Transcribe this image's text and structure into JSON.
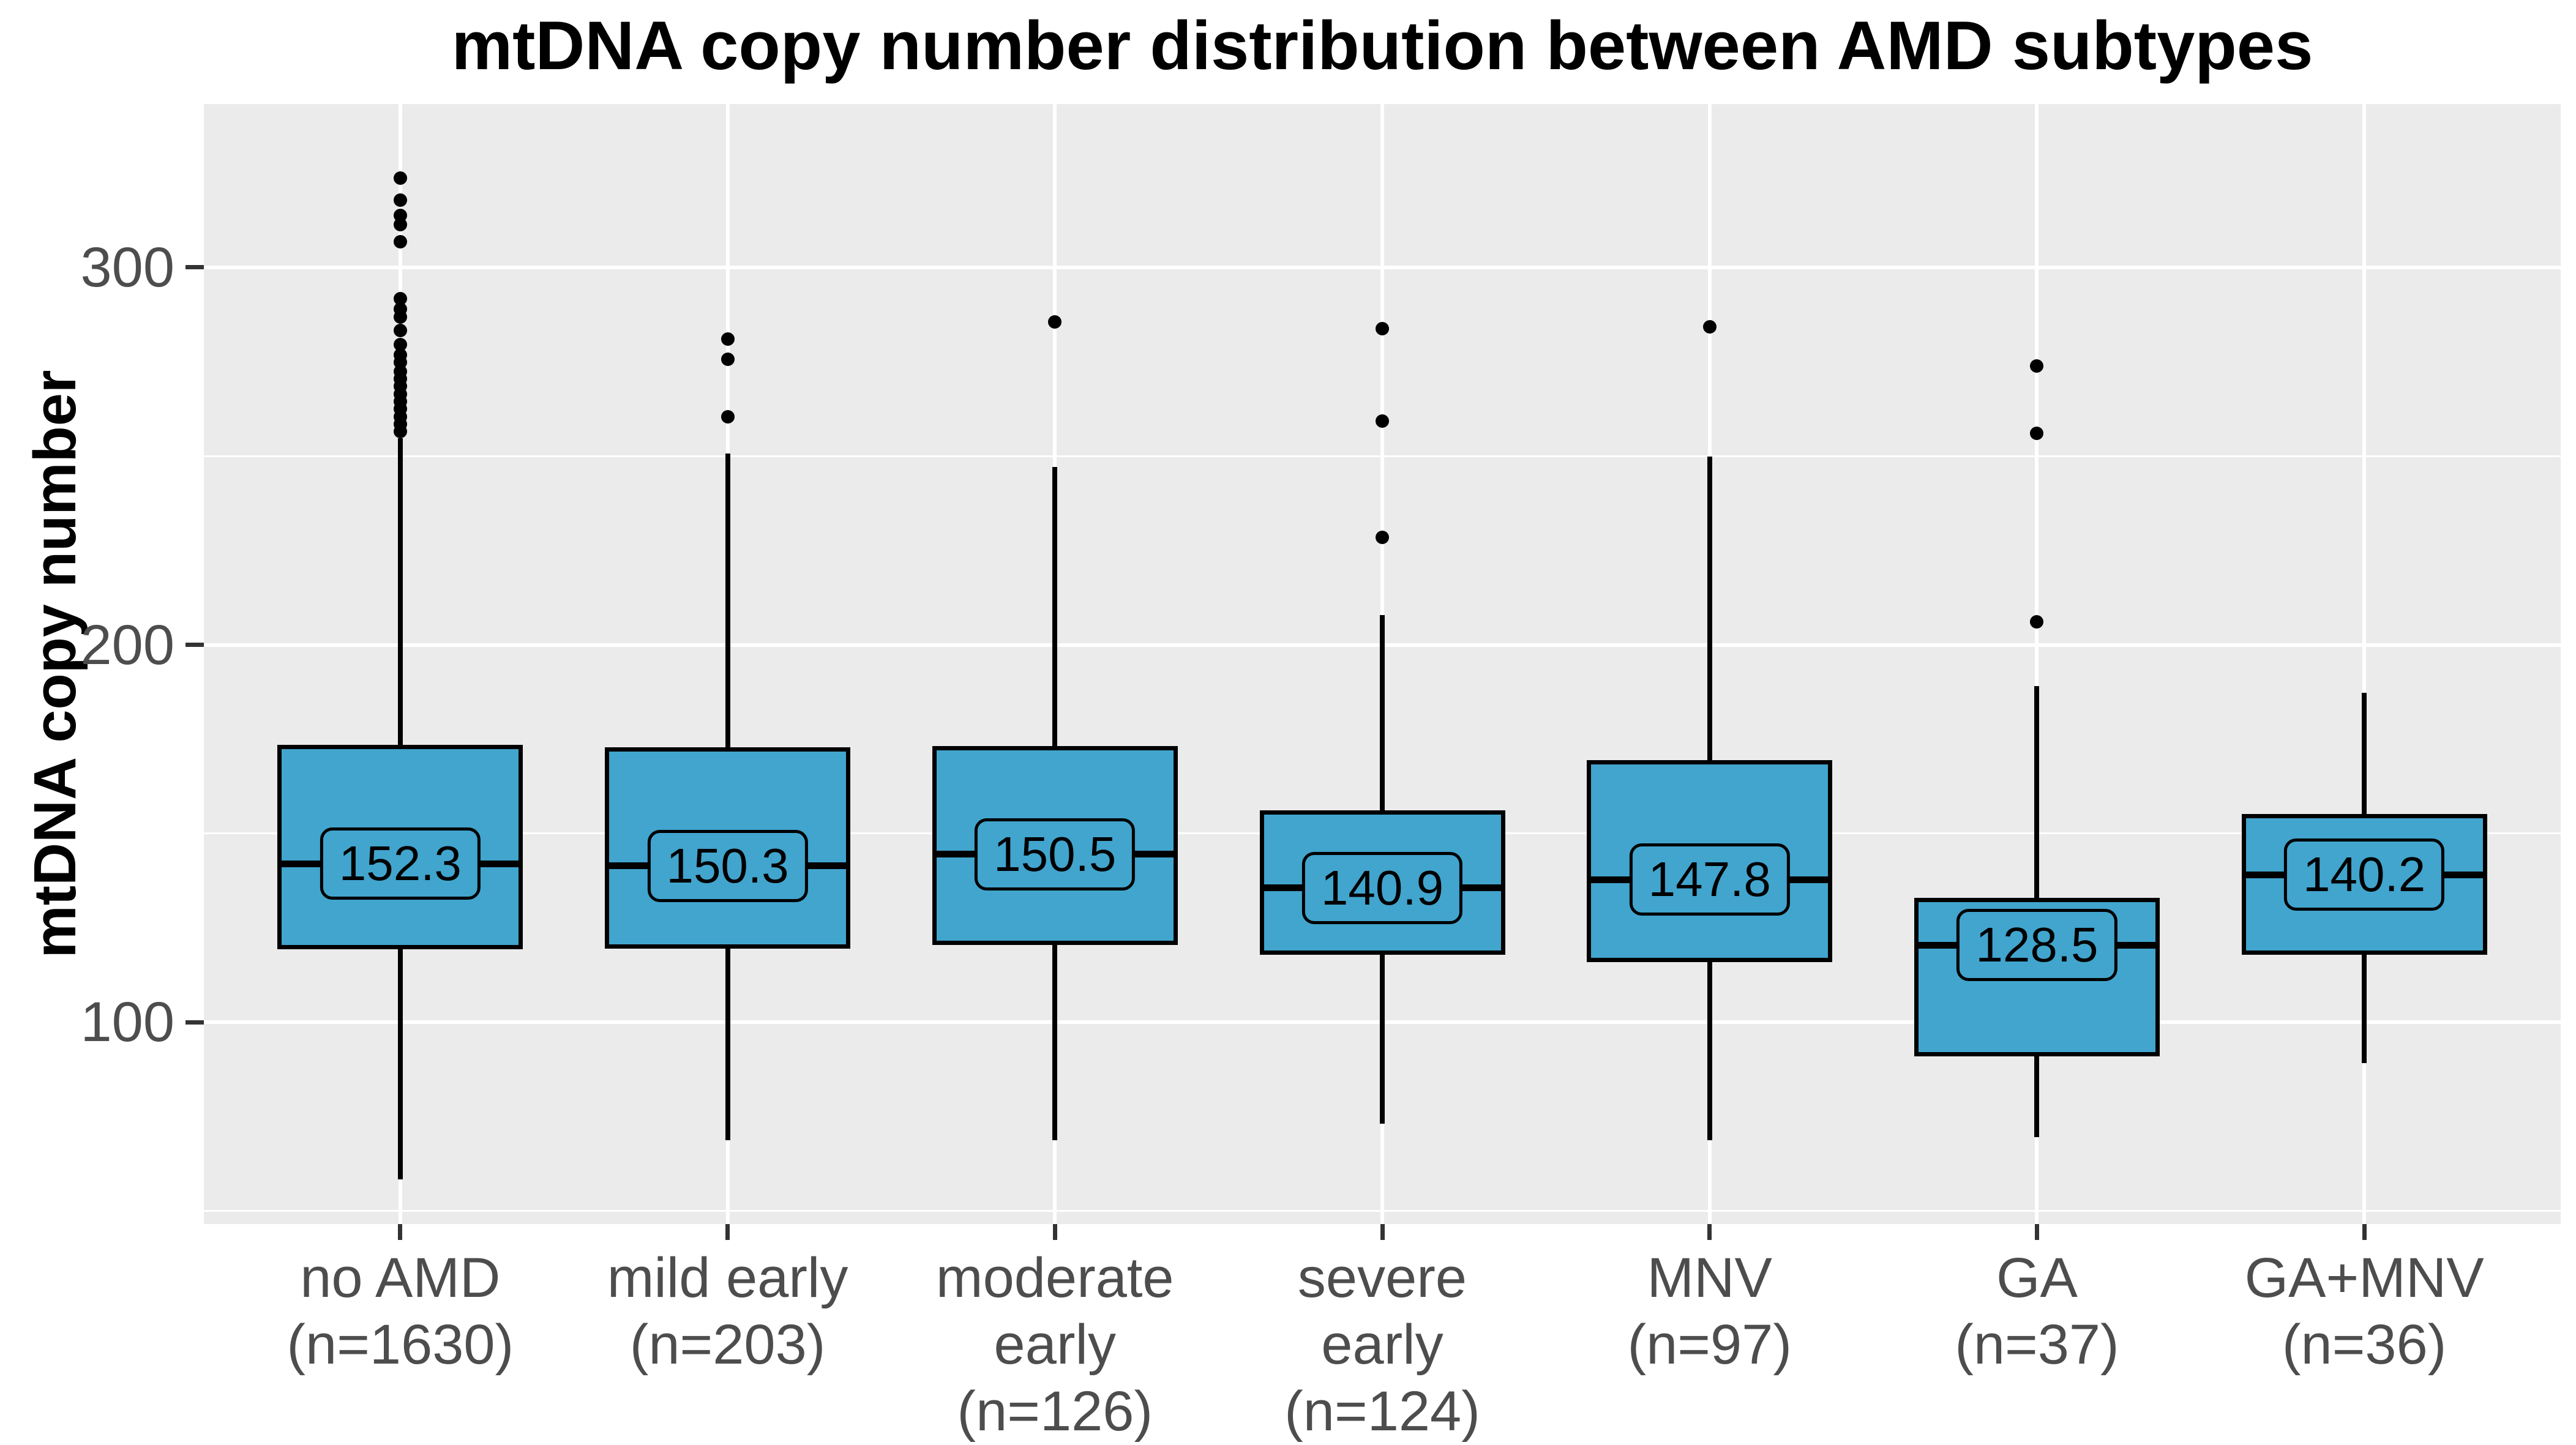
{
  "chart_data": {
    "type": "boxplot",
    "title": "mtDNA copy number distribution between AMD subtypes",
    "ylabel": "mtDNA copy number",
    "xlabel": "",
    "ylim": [
      46.5,
      343.3
    ],
    "grid": true,
    "legend_position": "none",
    "y_axis": {
      "ticks": [
        {
          "label": "300",
          "value": 300
        },
        {
          "label": "200",
          "value": 200
        },
        {
          "label": "100",
          "value": 100
        }
      ],
      "minor_gridlines": [
        50,
        150,
        250
      ]
    },
    "groups": [
      {
        "name": "no AMD",
        "n": 1630,
        "label_lines": [
          "no AMD",
          "(n=1630)"
        ],
        "mean_label": "152.3",
        "whisker_low": 58.3,
        "q1": 119.3,
        "median": 142.0,
        "q3": 173.5,
        "whisker_high": 254.7,
        "outliers": [
          256.5,
          258.5,
          260.5,
          262.5,
          264.5,
          266.5,
          268.5,
          270.5,
          272.5,
          274.8,
          276.8,
          279.6,
          283.3,
          286.8,
          289.0,
          291.7,
          306.8,
          311.4,
          313.8,
          317.9,
          323.6
        ]
      },
      {
        "name": "mild early",
        "n": 203,
        "label_lines": [
          "mild early",
          "(n=203)"
        ],
        "mean_label": "150.3",
        "whisker_low": 68.7,
        "q1": 119.5,
        "median": 141.4,
        "q3": 172.8,
        "whisker_high": 250.7,
        "outliers": [
          260.5,
          275.7,
          281.0
        ]
      },
      {
        "name": "moderate early",
        "n": 126,
        "label_lines": [
          "moderate",
          "early",
          "(n=126)"
        ],
        "mean_label": "150.5",
        "whisker_low": 68.7,
        "q1": 120.4,
        "median": 144.5,
        "q3": 173.1,
        "whisker_high": 247.1,
        "outliers": [
          285.5
        ]
      },
      {
        "name": "severe early",
        "n": 124,
        "label_lines": [
          "severe",
          "early",
          "(n=124)"
        ],
        "mean_label": "140.9",
        "whisker_low": 73.1,
        "q1": 117.8,
        "median": 135.6,
        "q3": 156.1,
        "whisker_high": 207.9,
        "outliers": [
          228.4,
          259.3,
          283.7
        ]
      },
      {
        "name": "MNV",
        "n": 97,
        "label_lines": [
          "MNV",
          "(n=97)"
        ],
        "mean_label": "147.8",
        "whisker_low": 68.7,
        "q1": 115.9,
        "median": 137.8,
        "q3": 169.5,
        "whisker_high": 249.8,
        "outliers": [
          284.3
        ]
      },
      {
        "name": "GA",
        "n": 37,
        "label_lines": [
          "GA",
          "(n=37)"
        ],
        "mean_label": "128.5",
        "whisker_low": 69.6,
        "q1": 91.0,
        "median": 120.4,
        "q3": 132.9,
        "whisker_high": 189.1,
        "outliers": [
          206.1,
          256.0,
          273.9
        ]
      },
      {
        "name": "GA+MNV",
        "n": 36,
        "label_lines": [
          "GA+MNV",
          "(n=36)"
        ],
        "mean_label": "140.2",
        "whisker_low": 89.2,
        "q1": 117.8,
        "median": 139.1,
        "q3": 155.2,
        "whisker_high": 187.3,
        "outliers": []
      }
    ],
    "colors": {
      "box_fill": "#41a5ce",
      "box_stroke": "#000000",
      "median": "#000000",
      "outlier": "#000000",
      "panel_bg": "#ebebeb",
      "gridline": "#ffffff",
      "axis_text": "#4d4d4d",
      "tick_mark": "#333333",
      "title_text": "#000000"
    }
  }
}
